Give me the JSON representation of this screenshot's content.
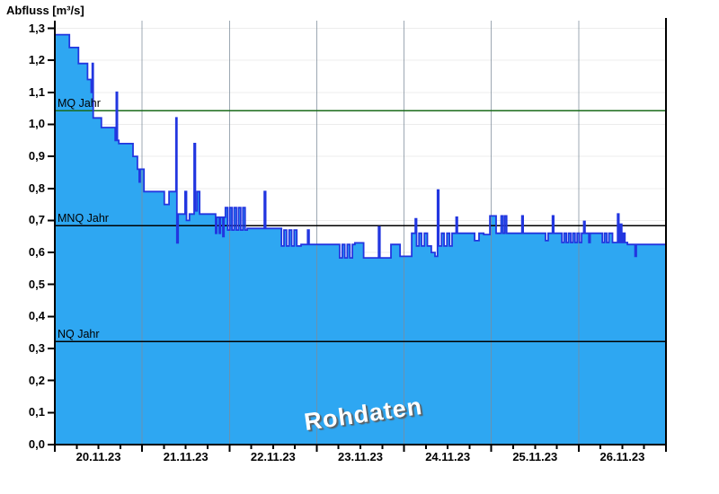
{
  "chart": {
    "title": "Abfluss [m³/s]",
    "watermark": "Rohdaten",
    "colors": {
      "area_fill": "#2ea7f2",
      "series_line": "#2236e0",
      "mq_line": "#1a6b1a",
      "ref_line": "#000000",
      "day_gridline": "#7d8c9a",
      "value_gridline": "#ececec",
      "axis": "#000000",
      "text": "#000000"
    },
    "y_axis": {
      "min": 0.0,
      "max": 1.3,
      "step": 0.1,
      "tick_labels": [
        "0,0",
        "0,1",
        "0,2",
        "0,3",
        "0,4",
        "0,5",
        "0,6",
        "0,7",
        "0,8",
        "0,9",
        "1,0",
        "1,1",
        "1,2",
        "1,3"
      ]
    },
    "x_axis": {
      "day_labels": [
        "20.11.23",
        "21.11.23",
        "22.11.23",
        "23.11.23",
        "24.11.23",
        "25.11.23",
        "26.11.23"
      ],
      "hours_total": 168,
      "day_hours": 24,
      "minor_tick_hours": 6
    },
    "reference_lines": [
      {
        "label": "MQ Jahr",
        "value": 1.043,
        "color": "#1a6b1a"
      },
      {
        "label": "MNQ Jahr",
        "value": 0.684,
        "color": "#000000"
      },
      {
        "label": "NQ Jahr",
        "value": 0.322,
        "color": "#000000"
      }
    ]
  },
  "chart_data": {
    "type": "area",
    "series_name": "Abfluss Rohdaten",
    "step": "after",
    "x_unit": "hours since 20.11.23 00:00",
    "ylabel": "Abfluss [m³/s]",
    "ylim": [
      0,
      1.3
    ],
    "xlim_hours": [
      0,
      168
    ],
    "points": [
      [
        0,
        1.28
      ],
      [
        4,
        1.24
      ],
      [
        6.5,
        1.19
      ],
      [
        9,
        1.14
      ],
      [
        10,
        1.1
      ],
      [
        10.3,
        1.19
      ],
      [
        10.55,
        1.02
      ],
      [
        12.8,
        0.99
      ],
      [
        16.6,
        0.95
      ],
      [
        16.9,
        1.1
      ],
      [
        17.2,
        0.95
      ],
      [
        17.6,
        0.94
      ],
      [
        21.5,
        0.9
      ],
      [
        22.7,
        0.86
      ],
      [
        23.2,
        0.82
      ],
      [
        23.45,
        0.86
      ],
      [
        24.5,
        0.79
      ],
      [
        30.1,
        0.75
      ],
      [
        31.4,
        0.79
      ],
      [
        33.3,
        1.02
      ],
      [
        33.55,
        0.63
      ],
      [
        33.9,
        0.72
      ],
      [
        35.8,
        0.79
      ],
      [
        36.2,
        0.7
      ],
      [
        37,
        0.72
      ],
      [
        38.3,
        0.94
      ],
      [
        38.65,
        0.73
      ],
      [
        39.1,
        0.79
      ],
      [
        39.8,
        0.72
      ],
      [
        44.2,
        0.66
      ],
      [
        44.5,
        0.71
      ],
      [
        45.2,
        0.66
      ],
      [
        45.5,
        0.71
      ],
      [
        46.2,
        0.65
      ],
      [
        46.5,
        0.71
      ],
      [
        46.9,
        0.74
      ],
      [
        47.5,
        0.67
      ],
      [
        48.1,
        0.74
      ],
      [
        48.7,
        0.67
      ],
      [
        49.3,
        0.74
      ],
      [
        49.9,
        0.67
      ],
      [
        50.5,
        0.74
      ],
      [
        51.1,
        0.67
      ],
      [
        51.7,
        0.74
      ],
      [
        52.3,
        0.67
      ],
      [
        52.9,
        0.675
      ],
      [
        57.6,
        0.79
      ],
      [
        57.95,
        0.675
      ],
      [
        62.3,
        0.62
      ],
      [
        63,
        0.67
      ],
      [
        63.7,
        0.62
      ],
      [
        64.4,
        0.67
      ],
      [
        65.1,
        0.62
      ],
      [
        65.8,
        0.67
      ],
      [
        66.5,
        0.62
      ],
      [
        67.7,
        0.625
      ],
      [
        69.5,
        0.67
      ],
      [
        69.9,
        0.625
      ],
      [
        78.3,
        0.583
      ],
      [
        79,
        0.625
      ],
      [
        79.7,
        0.583
      ],
      [
        80.4,
        0.625
      ],
      [
        81.1,
        0.583
      ],
      [
        81.8,
        0.625
      ],
      [
        82.5,
        0.63
      ],
      [
        84.9,
        0.583
      ],
      [
        89,
        0.68
      ],
      [
        89.35,
        0.583
      ],
      [
        92.4,
        0.625
      ],
      [
        94.9,
        0.588
      ],
      [
        98.1,
        0.66
      ],
      [
        99.1,
        0.705
      ],
      [
        99.45,
        0.62
      ],
      [
        100.1,
        0.66
      ],
      [
        100.8,
        0.62
      ],
      [
        101.6,
        0.66
      ],
      [
        102.4,
        0.62
      ],
      [
        103.5,
        0.6
      ],
      [
        104.5,
        0.588
      ],
      [
        105.2,
        0.795
      ],
      [
        105.55,
        0.62
      ],
      [
        106.3,
        0.66
      ],
      [
        107,
        0.62
      ],
      [
        107.8,
        0.66
      ],
      [
        108.5,
        0.62
      ],
      [
        109.2,
        0.66
      ],
      [
        110.3,
        0.71
      ],
      [
        110.65,
        0.66
      ],
      [
        115.4,
        0.637
      ],
      [
        116.6,
        0.66
      ],
      [
        117.9,
        0.656
      ],
      [
        119.6,
        0.714
      ],
      [
        121.3,
        0.66
      ],
      [
        122.7,
        0.714
      ],
      [
        123.2,
        0.66
      ],
      [
        123.7,
        0.714
      ],
      [
        124.2,
        0.66
      ],
      [
        128.4,
        0.714
      ],
      [
        128.75,
        0.66
      ],
      [
        134.9,
        0.637
      ],
      [
        135.6,
        0.66
      ],
      [
        136.8,
        0.714
      ],
      [
        137.15,
        0.66
      ],
      [
        139.4,
        0.631
      ],
      [
        140,
        0.66
      ],
      [
        140.6,
        0.631
      ],
      [
        141.2,
        0.66
      ],
      [
        141.8,
        0.631
      ],
      [
        142.4,
        0.66
      ],
      [
        143,
        0.631
      ],
      [
        143.6,
        0.66
      ],
      [
        144.2,
        0.631
      ],
      [
        144.8,
        0.66
      ],
      [
        145.4,
        0.697
      ],
      [
        145.75,
        0.66
      ],
      [
        146.8,
        0.631
      ],
      [
        147.15,
        0.66
      ],
      [
        150.5,
        0.631
      ],
      [
        151.1,
        0.66
      ],
      [
        151.7,
        0.631
      ],
      [
        152.3,
        0.66
      ],
      [
        153.3,
        0.631
      ],
      [
        154.7,
        0.72
      ],
      [
        155.05,
        0.631
      ],
      [
        155.5,
        0.688
      ],
      [
        155.85,
        0.631
      ],
      [
        156.3,
        0.66
      ],
      [
        156.7,
        0.631
      ],
      [
        157.4,
        0.625
      ],
      [
        159.5,
        0.588
      ],
      [
        159.85,
        0.625
      ],
      [
        168,
        0.625
      ]
    ]
  }
}
